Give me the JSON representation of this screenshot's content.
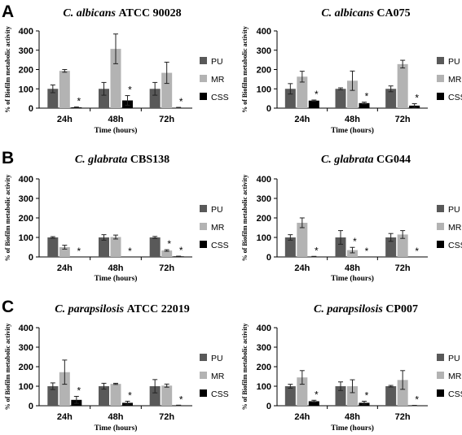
{
  "panel_labels": [
    "A",
    "B",
    "C"
  ],
  "chart_data": [
    {
      "type": "bar",
      "title_italic": "C. albicans",
      "title_rest": "ATCC 90028",
      "xlabel": "Time (hours)",
      "ylabel": "% of Biofilm metabolic activity",
      "ylim": [
        0,
        400
      ],
      "yticks": [
        "0",
        "100",
        "200",
        "300",
        "400"
      ],
      "categories": [
        "24h",
        "48h",
        "72h"
      ],
      "series": [
        {
          "name": "PU",
          "color": "#595959",
          "values": [
            100,
            100,
            100
          ],
          "errors": [
            20,
            33,
            33
          ],
          "significant": [
            false,
            false,
            false
          ]
        },
        {
          "name": "MR",
          "color": "#b3b3b3",
          "values": [
            193,
            307,
            183
          ],
          "errors": [
            7,
            77,
            55
          ],
          "significant": [
            false,
            false,
            false
          ]
        },
        {
          "name": "CSS",
          "color": "#000000",
          "values": [
            4,
            40,
            2
          ],
          "errors": [
            2,
            25,
            2
          ],
          "significant": [
            true,
            true,
            true
          ]
        }
      ]
    },
    {
      "type": "bar",
      "title_italic": "C. albicans",
      "title_rest": "CA075",
      "xlabel": "Time (hours)",
      "ylabel": "% of Biofilm metabolic activity",
      "ylim": [
        0,
        400
      ],
      "yticks": [
        "0",
        "100",
        "200",
        "300",
        "400"
      ],
      "categories": [
        "24h",
        "48h",
        "72h"
      ],
      "series": [
        {
          "name": "PU",
          "color": "#595959",
          "values": [
            100,
            100,
            100
          ],
          "errors": [
            27,
            5,
            15
          ],
          "significant": [
            false,
            false,
            false
          ]
        },
        {
          "name": "MR",
          "color": "#b3b3b3",
          "values": [
            163,
            142,
            228
          ],
          "errors": [
            28,
            50,
            20
          ],
          "significant": [
            false,
            false,
            false
          ]
        },
        {
          "name": "CSS",
          "color": "#000000",
          "values": [
            39,
            26,
            13
          ],
          "errors": [
            3,
            5,
            10
          ],
          "significant": [
            true,
            true,
            true
          ]
        }
      ]
    },
    {
      "type": "bar",
      "title_italic": "C. glabrata",
      "title_rest": "CBS138",
      "xlabel": "Time (hours)",
      "ylabel": "% of Biofilm metabolic activity",
      "ylim": [
        0,
        400
      ],
      "yticks": [
        "0",
        "100",
        "200",
        "300",
        "400"
      ],
      "categories": [
        "24h",
        "48h",
        "72h"
      ],
      "series": [
        {
          "name": "PU",
          "color": "#595959",
          "values": [
            100,
            100,
            100
          ],
          "errors": [
            4,
            14,
            5
          ],
          "significant": [
            false,
            false,
            false
          ]
        },
        {
          "name": "MR",
          "color": "#b3b3b3",
          "values": [
            50,
            102,
            33
          ],
          "errors": [
            10,
            10,
            4
          ],
          "significant": [
            false,
            false,
            true
          ]
        },
        {
          "name": "CSS",
          "color": "#000000",
          "values": [
            0,
            0,
            3
          ],
          "errors": [
            0,
            0,
            1
          ],
          "significant": [
            true,
            true,
            true
          ]
        }
      ]
    },
    {
      "type": "bar",
      "title_italic": "C. glabrata",
      "title_rest": "CG044",
      "xlabel": "Time (hours)",
      "ylabel": "% of Biofilm metabolic activity",
      "ylim": [
        0,
        400
      ],
      "yticks": [
        "0",
        "100",
        "200",
        "300",
        "400"
      ],
      "categories": [
        "24h",
        "48h",
        "72h"
      ],
      "series": [
        {
          "name": "PU",
          "color": "#595959",
          "values": [
            100,
            100,
            100
          ],
          "errors": [
            14,
            35,
            20
          ],
          "significant": [
            false,
            false,
            false
          ]
        },
        {
          "name": "MR",
          "color": "#b3b3b3",
          "values": [
            175,
            35,
            115
          ],
          "errors": [
            25,
            14,
            20
          ],
          "significant": [
            false,
            true,
            false
          ]
        },
        {
          "name": "CSS",
          "color": "#000000",
          "values": [
            2,
            0,
            0
          ],
          "errors": [
            1,
            0,
            0
          ],
          "significant": [
            true,
            true,
            true
          ]
        }
      ]
    },
    {
      "type": "bar",
      "title_italic": "C. parapsilosis",
      "title_rest": "ATCC 22019",
      "xlabel": "Time (hours)",
      "ylabel": "% of Biofilm metabolic activity",
      "ylim": [
        0,
        400
      ],
      "yticks": [
        "0",
        "100",
        "200",
        "300",
        "400"
      ],
      "categories": [
        "24h",
        "48h",
        "72h"
      ],
      "series": [
        {
          "name": "PU",
          "color": "#595959",
          "values": [
            100,
            100,
            100
          ],
          "errors": [
            17,
            15,
            34
          ],
          "significant": [
            false,
            false,
            false
          ]
        },
        {
          "name": "MR",
          "color": "#b3b3b3",
          "values": [
            172,
            112,
            103
          ],
          "errors": [
            62,
            3,
            8
          ],
          "significant": [
            false,
            false,
            false
          ]
        },
        {
          "name": "CSS",
          "color": "#000000",
          "values": [
            30,
            15,
            2
          ],
          "errors": [
            18,
            8,
            1
          ],
          "significant": [
            true,
            true,
            true
          ]
        }
      ]
    },
    {
      "type": "bar",
      "title_italic": "C. parapsilosis",
      "title_rest": "CP007",
      "xlabel": "Time (hours)",
      "ylabel": "% of Biofilm metabolic activity",
      "ylim": [
        0,
        400
      ],
      "yticks": [
        "0",
        "100",
        "200",
        "300",
        "400"
      ],
      "categories": [
        "24h",
        "48h",
        "72h"
      ],
      "series": [
        {
          "name": "PU",
          "color": "#595959",
          "values": [
            100,
            100,
            100
          ],
          "errors": [
            10,
            22,
            4
          ],
          "significant": [
            false,
            false,
            false
          ]
        },
        {
          "name": "MR",
          "color": "#b3b3b3",
          "values": [
            145,
            100,
            132
          ],
          "errors": [
            35,
            33,
            48
          ],
          "significant": [
            false,
            false,
            false
          ]
        },
        {
          "name": "CSS",
          "color": "#000000",
          "values": [
            23,
            15,
            1
          ],
          "errors": [
            5,
            8,
            1
          ],
          "significant": [
            true,
            true,
            true
          ]
        }
      ]
    }
  ]
}
